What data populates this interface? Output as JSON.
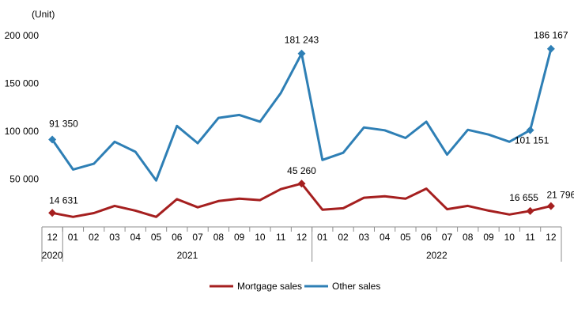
{
  "chart_data": {
    "type": "line",
    "ylabel": "(Unit)",
    "ylim": [
      0,
      200000
    ],
    "y_ticks": [
      "200 000",
      "150 000",
      "100 000",
      "50 000"
    ],
    "y_tick_values": [
      200000,
      150000,
      100000,
      50000
    ],
    "x": [
      "12",
      "01",
      "02",
      "03",
      "04",
      "05",
      "06",
      "07",
      "08",
      "09",
      "10",
      "11",
      "12",
      "01",
      "02",
      "03",
      "04",
      "05",
      "06",
      "07",
      "08",
      "09",
      "10",
      "11",
      "12"
    ],
    "years": [
      {
        "label": "2020",
        "start": 0,
        "end": 0
      },
      {
        "label": "2021",
        "start": 1,
        "end": 12
      },
      {
        "label": "2022",
        "start": 13,
        "end": 24
      }
    ],
    "series": [
      {
        "name": "Mortgage sales",
        "color": "#a51f1f",
        "values": [
          14631,
          10500,
          14500,
          22000,
          17000,
          10500,
          29000,
          20500,
          27000,
          29500,
          28000,
          39500,
          45260,
          18000,
          19500,
          30500,
          32000,
          29500,
          40000,
          18500,
          22000,
          17000,
          13000,
          16655,
          21796
        ],
        "labels": [
          {
            "index": 0,
            "text": "14 631"
          },
          {
            "index": 12,
            "text": "45 260"
          },
          {
            "index": 23,
            "text": "16 655"
          },
          {
            "index": 24,
            "text": "21 796"
          }
        ]
      },
      {
        "name": "Other sales",
        "color": "#2e7fb5",
        "values": [
          91350,
          60000,
          66000,
          89000,
          78500,
          48500,
          105500,
          87500,
          114000,
          117000,
          110000,
          140000,
          181243,
          70000,
          77500,
          104000,
          101000,
          93000,
          110000,
          75500,
          101500,
          96500,
          89000,
          101151,
          186167
        ],
        "labels": [
          {
            "index": 0,
            "text": "91 350"
          },
          {
            "index": 12,
            "text": "181 243"
          },
          {
            "index": 23,
            "text": "101 151"
          },
          {
            "index": 24,
            "text": "186 167"
          }
        ]
      }
    ],
    "legend_position": "bottom",
    "grid": false
  }
}
